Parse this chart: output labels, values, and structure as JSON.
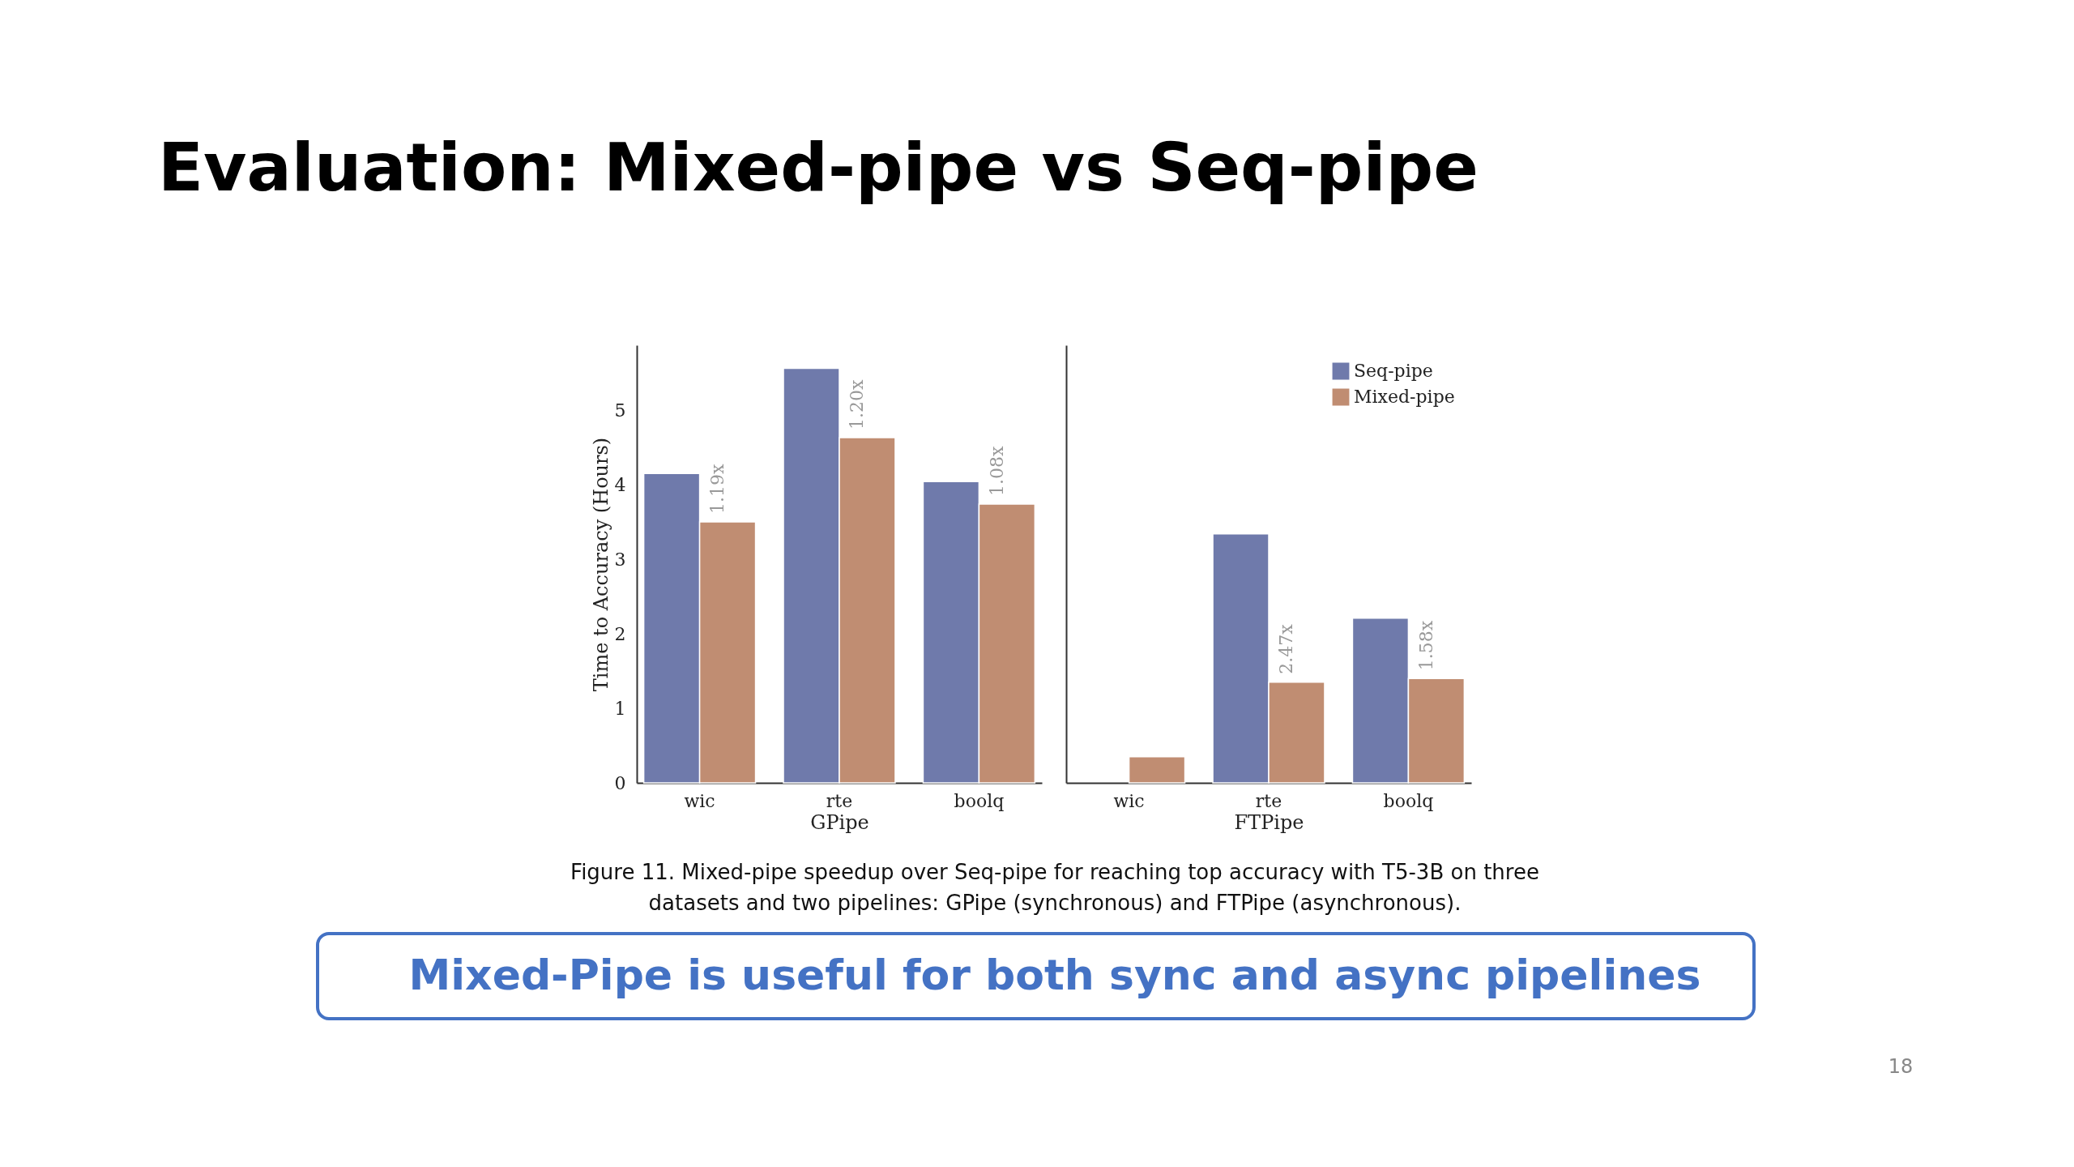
{
  "chart_data": [
    {
      "type": "bar",
      "title": "Evaluation: Mixed-pipe vs Seq-pipe",
      "xlabel": "GPipe",
      "ylabel": "Time to Accuracy (Hours)",
      "categories": [
        "wic",
        "rte",
        "boolq"
      ],
      "series": [
        {
          "name": "Seq-pipe",
          "color": "#6f7aab",
          "values": [
            4.15,
            5.56,
            4.04
          ]
        },
        {
          "name": "Mixed-pipe",
          "color": "#c08d72",
          "values": [
            3.5,
            4.63,
            3.74
          ]
        }
      ],
      "ylim": [
        0,
        5.87
      ],
      "yticks": [
        0,
        1,
        2,
        3,
        4,
        5
      ],
      "grid": false,
      "legend": "top right",
      "annotations": [
        {
          "text": "1.19x",
          "x": "wic",
          "y": 3.5
        },
        {
          "text": "1.20x",
          "x": "rte",
          "y": 4.63
        },
        {
          "text": "1.08x",
          "x": "boolq",
          "y": 3.74
        },
        "Figure 11. Mixed-pipe speedup over Seq-pipe for reaching top accuracy with T5-3B on three\ndatasets and two pipelines: GPipe (synchronous) and FTPipe (asynchronous).",
        "Mixed-Pipe is useful for both sync and async pipelines",
        "18"
      ]
    },
    {
      "type": "bar",
      "xlabel": "FTPipe",
      "categories": [
        "wic",
        "rte",
        "boolq"
      ],
      "series": [
        {
          "name": "Seq-pipe",
          "color": "#6f7aab",
          "values": [
            null,
            3.34,
            2.21
          ]
        },
        {
          "name": "Mixed-pipe",
          "color": "#c08d72",
          "values": [
            0.35,
            1.35,
            1.4
          ]
        }
      ],
      "ylim": [
        0,
        5.87
      ],
      "yticks": [
        0,
        1,
        2,
        3,
        4,
        5
      ],
      "grid": false,
      "tick_labels": "x",
      "annotations": [
        {
          "text": "2.47x",
          "x": "rte",
          "y": 1.35
        },
        {
          "text": "1.58x",
          "x": "boolq",
          "y": 1.4
        }
      ]
    }
  ]
}
